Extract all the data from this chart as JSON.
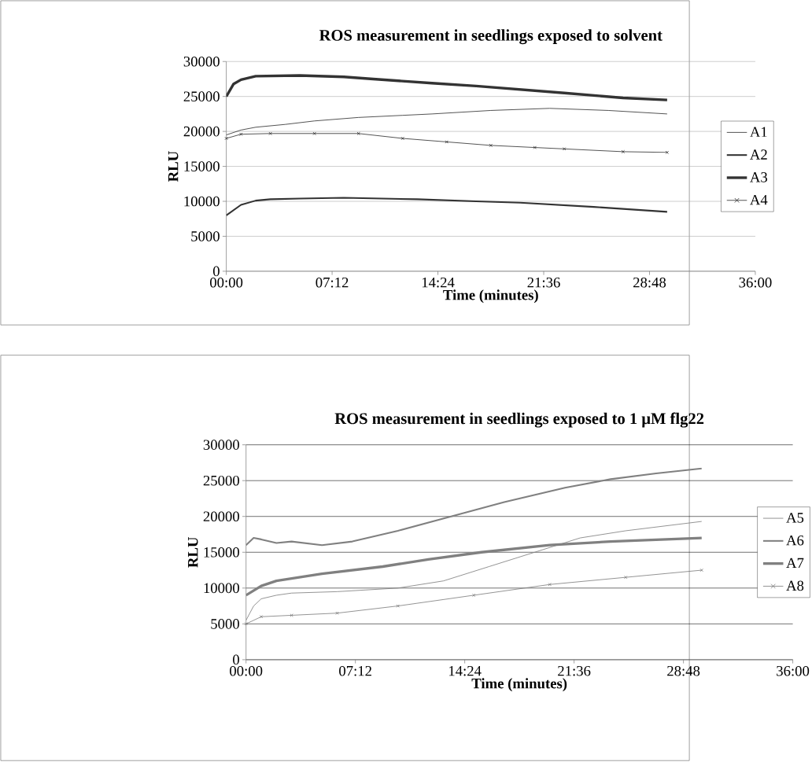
{
  "chart_data": [
    {
      "type": "line",
      "title": "ROS measurement in seedlings exposed to solvent",
      "xlabel": "Time (minutes)",
      "ylabel": "RLU",
      "xlim": [
        0,
        36
      ],
      "ylim": [
        0,
        30000
      ],
      "xticks": [
        {
          "value": 0,
          "label": "00:00"
        },
        {
          "value": 7.2,
          "label": "07:12"
        },
        {
          "value": 14.4,
          "label": "14:24"
        },
        {
          "value": 21.6,
          "label": "21:36"
        },
        {
          "value": 28.8,
          "label": "28:48"
        },
        {
          "value": 36,
          "label": "36:00"
        }
      ],
      "yticks": [
        0,
        5000,
        10000,
        15000,
        20000,
        25000,
        30000
      ],
      "grid": "y",
      "legend": "right",
      "series": [
        {
          "name": "A1",
          "color": "#333333",
          "x": [
            0,
            1,
            2,
            4,
            6,
            9,
            12,
            14,
            18,
            22,
            26,
            30
          ],
          "values": [
            19500,
            20200,
            20600,
            21000,
            21500,
            22000,
            22300,
            22500,
            23000,
            23300,
            23000,
            22500
          ]
        },
        {
          "name": "A2",
          "color": "#333333",
          "x": [
            0,
            1,
            2,
            3,
            5,
            8,
            13,
            17,
            20,
            25,
            30
          ],
          "values": [
            8000,
            9500,
            10100,
            10300,
            10400,
            10500,
            10300,
            10000,
            9800,
            9200,
            8500
          ]
        },
        {
          "name": "A3",
          "color": "#333333",
          "x": [
            0,
            0.5,
            1,
            2,
            5,
            8,
            10,
            14,
            17,
            20,
            23,
            27,
            30
          ],
          "values": [
            25000,
            26800,
            27400,
            27900,
            28000,
            27800,
            27500,
            26900,
            26500,
            26000,
            25500,
            24800,
            24500
          ]
        },
        {
          "name": "A4",
          "color": "#333333",
          "marker": "cross",
          "x": [
            0,
            1,
            3,
            6,
            9,
            12,
            15,
            18,
            21,
            23,
            27,
            30
          ],
          "values": [
            19000,
            19600,
            19700,
            19700,
            19700,
            19000,
            18500,
            18000,
            17700,
            17500,
            17100,
            17000
          ]
        }
      ]
    },
    {
      "type": "line",
      "title": "ROS measurement in seedlings exposed to 1 μM flg22",
      "xlabel": "Time (minutes)",
      "ylabel": "RLU",
      "xlim": [
        0,
        36
      ],
      "ylim": [
        0,
        30000
      ],
      "xticks": [
        {
          "value": 0,
          "label": "00:00"
        },
        {
          "value": 7.2,
          "label": "07:12"
        },
        {
          "value": 14.4,
          "label": "14:24"
        },
        {
          "value": 21.6,
          "label": "21:36"
        },
        {
          "value": 28.8,
          "label": "28:48"
        },
        {
          "value": 36,
          "label": "36:00"
        }
      ],
      "yticks": [
        0,
        5000,
        10000,
        15000,
        20000,
        25000,
        30000
      ],
      "grid": "y",
      "legend": "right",
      "series": [
        {
          "name": "A5",
          "color": "#808080",
          "x": [
            0,
            0.5,
            1,
            2,
            3,
            6,
            10,
            13,
            16,
            19,
            22,
            25,
            30
          ],
          "values": [
            5500,
            7500,
            8500,
            9000,
            9300,
            9500,
            10000,
            11000,
            13000,
            15000,
            17000,
            18000,
            19300
          ]
        },
        {
          "name": "A6",
          "color": "#808080",
          "x": [
            0,
            0.5,
            1,
            2,
            3,
            5,
            7,
            10,
            13.5,
            17,
            21,
            24,
            27,
            30
          ],
          "values": [
            16000,
            17000,
            16800,
            16300,
            16500,
            16000,
            16500,
            18000,
            20000,
            22000,
            24000,
            25200,
            26000,
            26700
          ]
        },
        {
          "name": "A7",
          "color": "#808080",
          "x": [
            0,
            1,
            2,
            5,
            9,
            12,
            15.5,
            20,
            24,
            30
          ],
          "values": [
            9000,
            10300,
            11000,
            12000,
            13000,
            14000,
            15000,
            16000,
            16500,
            17000
          ]
        },
        {
          "name": "A8",
          "color": "#808080",
          "marker": "cross",
          "x": [
            0,
            1,
            3,
            6,
            10,
            15,
            20,
            25,
            30
          ],
          "values": [
            5000,
            6000,
            6200,
            6500,
            7500,
            9000,
            10500,
            11500,
            12500
          ]
        }
      ]
    }
  ]
}
